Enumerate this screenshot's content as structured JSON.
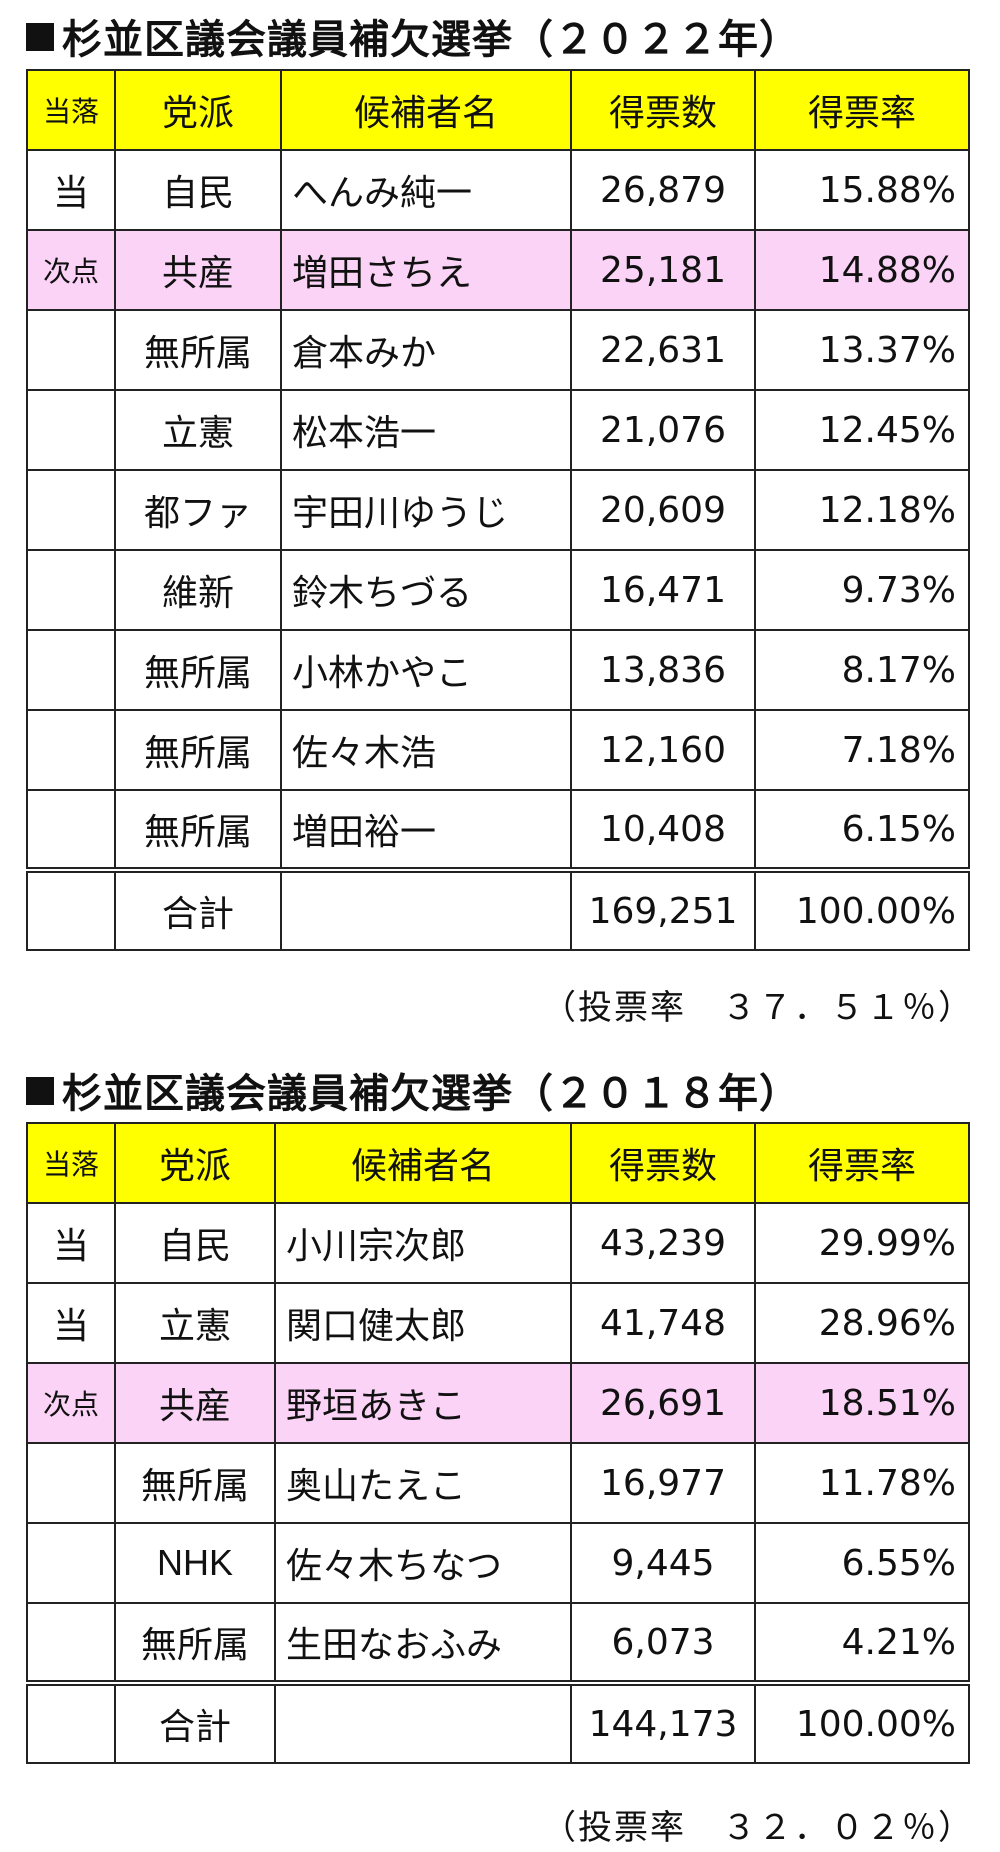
{
  "headers": {
    "status": "当落",
    "party": "党派",
    "name": "候補者名",
    "votes": "得票数",
    "rate": "得票率"
  },
  "total_label": "合計",
  "elections": [
    {
      "title": "杉並区議会議員補欠選挙（２０２２年）",
      "rows": [
        {
          "status": "当",
          "party": "自民",
          "name": "へんみ純一",
          "votes": "26,879",
          "rate": "15.88%"
        },
        {
          "status": "次点",
          "party": "共産",
          "name": "増田さちえ",
          "votes": "25,181",
          "rate": "14.88%"
        },
        {
          "status": "",
          "party": "無所属",
          "name": "倉本みか",
          "votes": "22,631",
          "rate": "13.37%"
        },
        {
          "status": "",
          "party": "立憲",
          "name": "松本浩一",
          "votes": "21,076",
          "rate": "12.45%"
        },
        {
          "status": "",
          "party": "都ファ",
          "name": "宇田川ゆうじ",
          "votes": "20,609",
          "rate": "12.18%"
        },
        {
          "status": "",
          "party": "維新",
          "name": "鈴木ちづる",
          "votes": "16,471",
          "rate": "9.73%"
        },
        {
          "status": "",
          "party": "無所属",
          "name": "小林かやこ",
          "votes": "13,836",
          "rate": "8.17%"
        },
        {
          "status": "",
          "party": "無所属",
          "name": "佐々木浩",
          "votes": "12,160",
          "rate": "7.18%"
        },
        {
          "status": "",
          "party": "無所属",
          "name": "増田裕一",
          "votes": "10,408",
          "rate": "6.15%"
        }
      ],
      "total": {
        "votes": "169,251",
        "rate": "100.00%"
      },
      "turnout": "（投票率　３７．５１％）"
    },
    {
      "title": "杉並区議会議員補欠選挙（２０１８年）",
      "rows": [
        {
          "status": "当",
          "party": "自民",
          "name": "小川宗次郎",
          "votes": "43,239",
          "rate": "29.99%"
        },
        {
          "status": "当",
          "party": "立憲",
          "name": "関口健太郎",
          "votes": "41,748",
          "rate": "28.96%"
        },
        {
          "status": "次点",
          "party": "共産",
          "name": "野垣あきこ",
          "votes": "26,691",
          "rate": "18.51%"
        },
        {
          "status": "",
          "party": "無所属",
          "name": "奥山たえこ",
          "votes": "16,977",
          "rate": "11.78%"
        },
        {
          "status": "",
          "party": "NHK",
          "name": "佐々木ちなつ",
          "votes": "9,445",
          "rate": "6.55%"
        },
        {
          "status": "",
          "party": "無所属",
          "name": "生田なおふみ",
          "votes": "6,073",
          "rate": "4.21%"
        }
      ],
      "total": {
        "votes": "144,173",
        "rate": "100.00%"
      },
      "turnout": "（投票率　３２．０２％）"
    }
  ],
  "colors": {
    "header_bg": "#ffff00",
    "runner_up_bg": "#fbd3f6",
    "border": "#222222"
  }
}
